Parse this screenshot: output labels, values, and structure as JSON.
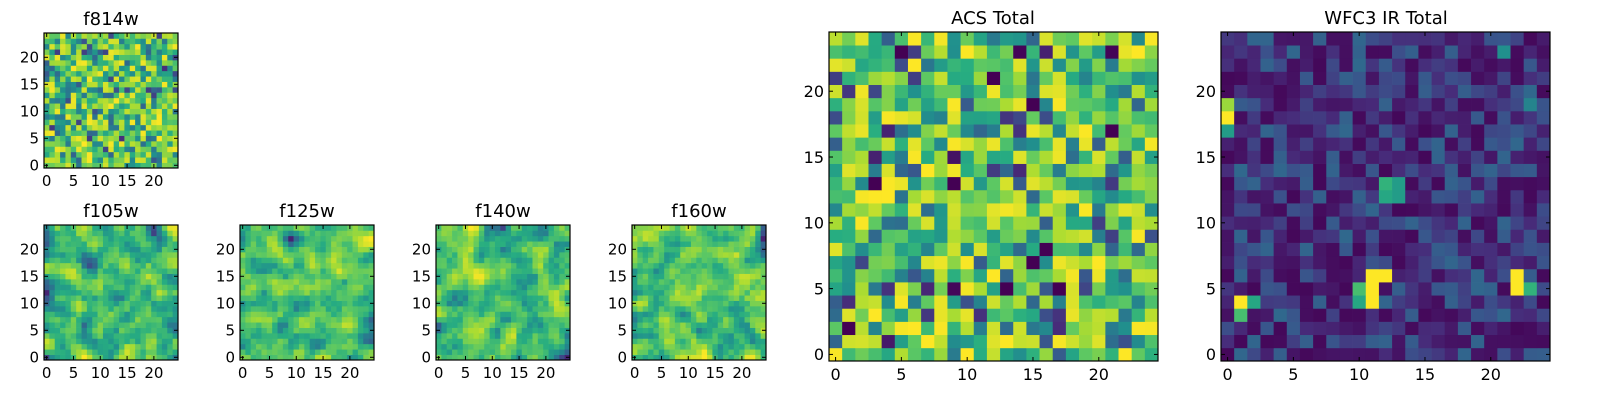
{
  "colormap": "viridis",
  "colors": {
    "viridis_stops": [
      "#440154",
      "#472c7a",
      "#3b518b",
      "#2c718e",
      "#21908d",
      "#27ad81",
      "#5cc863",
      "#aadc32",
      "#fde725"
    ],
    "frame": "#000000",
    "background": "#ffffff"
  },
  "chart_data": [
    {
      "type": "heatmap",
      "name": "f814w",
      "title": "f814w",
      "grid_size": 25,
      "xlim": [
        0,
        24
      ],
      "ylim": [
        0,
        24
      ],
      "xticks": [
        "0",
        "5",
        "10",
        "15",
        "20"
      ],
      "yticks": [
        "0",
        "5",
        "10",
        "15",
        "20"
      ],
      "pattern": "noisy",
      "seed": 11,
      "value_range": [
        0.1,
        1.0
      ],
      "mean": 0.68,
      "notable_cells": []
    },
    {
      "type": "heatmap",
      "name": "f105w",
      "title": "f105w",
      "grid_size": 25,
      "xlim": [
        0,
        24
      ],
      "ylim": [
        0,
        24
      ],
      "xticks": [
        "0",
        "5",
        "10",
        "15",
        "20"
      ],
      "yticks": [
        "0",
        "5",
        "10",
        "15",
        "20"
      ],
      "pattern": "smooth",
      "seed": 23,
      "value_range": [
        0.1,
        1.0
      ],
      "mean": 0.74,
      "notable_cells": []
    },
    {
      "type": "heatmap",
      "name": "f125w",
      "title": "f125w",
      "grid_size": 25,
      "xlim": [
        0,
        24
      ],
      "ylim": [
        0,
        24
      ],
      "xticks": [
        "0",
        "5",
        "10",
        "15",
        "20"
      ],
      "yticks": [
        "0",
        "5",
        "10",
        "15",
        "20"
      ],
      "pattern": "smooth",
      "seed": 37,
      "value_range": [
        0.1,
        1.0
      ],
      "mean": 0.7,
      "notable_cells": []
    },
    {
      "type": "heatmap",
      "name": "f140w",
      "title": "f140w",
      "grid_size": 25,
      "xlim": [
        0,
        24
      ],
      "ylim": [
        0,
        24
      ],
      "xticks": [
        "0",
        "5",
        "10",
        "15",
        "20"
      ],
      "yticks": [
        "0",
        "5",
        "10",
        "15",
        "20"
      ],
      "pattern": "smooth",
      "seed": 41,
      "value_range": [
        0.1,
        1.0
      ],
      "mean": 0.7,
      "notable_cells": []
    },
    {
      "type": "heatmap",
      "name": "f160w",
      "title": "f160w",
      "grid_size": 25,
      "xlim": [
        0,
        24
      ],
      "ylim": [
        0,
        24
      ],
      "xticks": [
        "0",
        "5",
        "10",
        "15",
        "20"
      ],
      "yticks": [
        "0",
        "5",
        "10",
        "15",
        "20"
      ],
      "pattern": "smooth",
      "seed": 53,
      "value_range": [
        0.1,
        1.0
      ],
      "mean": 0.66,
      "notable_cells": []
    },
    {
      "type": "heatmap",
      "name": "acs_total",
      "title": "ACS Total",
      "grid_size": 25,
      "xlim": [
        0,
        24
      ],
      "ylim": [
        0,
        24
      ],
      "xticks": [
        "0",
        "5",
        "10",
        "15",
        "20"
      ],
      "yticks": [
        "0",
        "5",
        "10",
        "15",
        "20"
      ],
      "pattern": "noisy",
      "seed": 67,
      "value_range": [
        0.0,
        1.0
      ],
      "mean": 0.72,
      "notable_cells": [
        {
          "x": 5,
          "y": 23,
          "v": 0.0
        },
        {
          "x": 3,
          "y": 13,
          "v": 0.0
        },
        {
          "x": 9,
          "y": 13,
          "v": 0.0
        },
        {
          "x": 12,
          "y": 21,
          "v": 0.0
        },
        {
          "x": 16,
          "y": 8,
          "v": 0.0
        },
        {
          "x": 15,
          "y": 7,
          "v": 0.0
        },
        {
          "x": 13,
          "y": 5,
          "v": 0.0
        },
        {
          "x": 21,
          "y": 17,
          "v": 0.0
        },
        {
          "x": 9,
          "y": 5,
          "v": 0.02
        },
        {
          "x": 1,
          "y": 2,
          "v": 0.0
        },
        {
          "x": 17,
          "y": 5,
          "v": 0.0
        },
        {
          "x": 9,
          "y": 15,
          "v": 0.05
        },
        {
          "x": 15,
          "y": 19,
          "v": 0.0
        },
        {
          "x": 6,
          "y": 22,
          "v": 1.0
        },
        {
          "x": 23,
          "y": 23,
          "v": 1.0
        },
        {
          "x": 6,
          "y": 2,
          "v": 1.0
        },
        {
          "x": 7,
          "y": 1,
          "v": 1.0
        },
        {
          "x": 10,
          "y": 0,
          "v": 1.0
        },
        {
          "x": 22,
          "y": 0,
          "v": 1.0
        },
        {
          "x": 3,
          "y": 3,
          "v": 1.0
        },
        {
          "x": 4,
          "y": 12,
          "v": 1.0
        },
        {
          "x": 12,
          "y": 6,
          "v": 1.0
        },
        {
          "x": 20,
          "y": 7,
          "v": 1.0
        }
      ]
    },
    {
      "type": "heatmap",
      "name": "wfc3_ir_total",
      "title": "WFC3 IR Total",
      "grid_size": 25,
      "xlim": [
        0,
        24
      ],
      "ylim": [
        0,
        24
      ],
      "xticks": [
        "0",
        "5",
        "10",
        "15",
        "20"
      ],
      "yticks": [
        "0",
        "5",
        "10",
        "15",
        "20"
      ],
      "pattern": "low",
      "seed": 79,
      "value_range": [
        0.0,
        1.0
      ],
      "mean": 0.15,
      "notable_cells": [
        {
          "x": 0,
          "y": 18,
          "v": 1.0
        },
        {
          "x": 0,
          "y": 19,
          "v": 0.85
        },
        {
          "x": 0,
          "y": 17,
          "v": 0.55
        },
        {
          "x": 11,
          "y": 6,
          "v": 1.0
        },
        {
          "x": 12,
          "y": 6,
          "v": 1.0
        },
        {
          "x": 11,
          "y": 5,
          "v": 1.0
        },
        {
          "x": 11,
          "y": 4,
          "v": 1.0
        },
        {
          "x": 10,
          "y": 5,
          "v": 0.7
        },
        {
          "x": 10,
          "y": 4,
          "v": 0.6
        },
        {
          "x": 1,
          "y": 4,
          "v": 1.0
        },
        {
          "x": 1,
          "y": 3,
          "v": 0.7
        },
        {
          "x": 2,
          "y": 4,
          "v": 0.6
        },
        {
          "x": 22,
          "y": 6,
          "v": 1.0
        },
        {
          "x": 22,
          "y": 5,
          "v": 1.0
        },
        {
          "x": 23,
          "y": 5,
          "v": 0.65
        },
        {
          "x": 12,
          "y": 13,
          "v": 0.65
        },
        {
          "x": 12,
          "y": 12,
          "v": 0.6
        },
        {
          "x": 13,
          "y": 13,
          "v": 0.55
        },
        {
          "x": 13,
          "y": 12,
          "v": 0.55
        },
        {
          "x": 21,
          "y": 23,
          "v": 0.5
        },
        {
          "x": 23,
          "y": 19,
          "v": 0.45
        }
      ]
    }
  ]
}
